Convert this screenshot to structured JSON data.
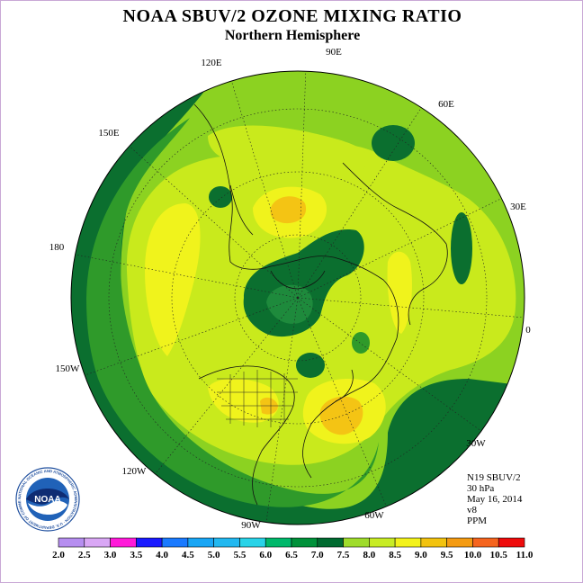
{
  "title": "NOAA SBUV/2 OZONE MIXING RATIO",
  "subtitle": "Northern Hemisphere",
  "longitude_labels": [
    {
      "label": "90E"
    },
    {
      "label": "60E"
    },
    {
      "label": "30E"
    },
    {
      "label": "0"
    },
    {
      "label": "30W"
    },
    {
      "label": "60W"
    },
    {
      "label": "90W"
    },
    {
      "label": "120W"
    },
    {
      "label": "150W"
    },
    {
      "label": "180"
    },
    {
      "label": "150E"
    },
    {
      "label": "120E"
    }
  ],
  "info": {
    "instrument": "N19 SBUV/2",
    "level": "30 hPa",
    "date": "May 16, 2014",
    "version": "v8",
    "units": "PPM"
  },
  "logo_text": "NOAA",
  "logo_ring_text": "NATIONAL OCEANIC AND ATMOSPHERIC ADMINISTRATION · U.S. DEPARTMENT OF COMMERCE",
  "colorbar": {
    "ticks": [
      "2.0",
      "2.5",
      "3.0",
      "3.5",
      "4.0",
      "4.5",
      "5.0",
      "5.5",
      "6.0",
      "6.5",
      "7.0",
      "7.5",
      "8.0",
      "8.5",
      "9.0",
      "9.5",
      "10.0",
      "10.5",
      "11.0"
    ],
    "colors": [
      "#b68ef0",
      "#d9a7f5",
      "#ff1ad9",
      "#1a1aff",
      "#1a7aff",
      "#19a6f5",
      "#22b8f0",
      "#29d3e8",
      "#00b86b",
      "#00913a",
      "#006b30",
      "#9fdc2b",
      "#c8ec25",
      "#f3f21b",
      "#f2c30f",
      "#f49b12",
      "#f5641e",
      "#ee0c0c",
      "#8b5a3c"
    ]
  },
  "map_colors": {
    "level_6_5": "#0b6f2f",
    "level_7_0": "#2f9a2a",
    "level_7_5": "#8cd221",
    "level_8_0": "#c9ea1c",
    "level_8_5": "#f0f31c",
    "level_9_0": "#f4c414"
  }
}
